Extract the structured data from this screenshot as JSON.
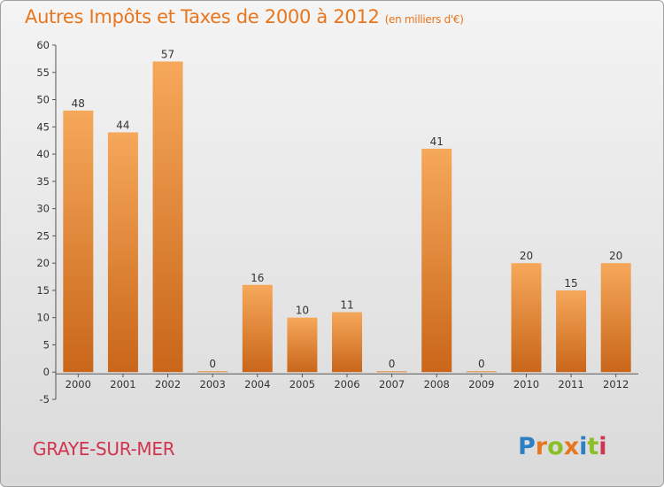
{
  "header": {
    "title": "Autres Impôts et Taxes de 2000 à 2012",
    "subtitle": "(en milliers d'€)"
  },
  "footer": {
    "place": "GRAYE-SUR-MER",
    "brand": "Proxiti",
    "brand_letters": [
      {
        "ch": "P",
        "color": "#2d7fc4"
      },
      {
        "ch": "r",
        "color": "#e8761e"
      },
      {
        "ch": "o",
        "color": "#8cbf26"
      },
      {
        "ch": "x",
        "color": "#e8761e"
      },
      {
        "ch": "i",
        "color": "#2d7fc4"
      },
      {
        "ch": "t",
        "color": "#8cbf26"
      },
      {
        "ch": "i",
        "color": "#d0344f"
      }
    ]
  },
  "colors": {
    "bar_top": "#f6a85a",
    "bar_bottom": "#c9661a",
    "title": "#e8761e",
    "place": "#d0344f"
  },
  "chart_data": {
    "type": "bar",
    "title": "Autres Impôts et Taxes de 2000 à 2012",
    "subtitle": "(en milliers d'€)",
    "categories": [
      "2000",
      "2001",
      "2002",
      "2003",
      "2004",
      "2005",
      "2006",
      "2007",
      "2008",
      "2009",
      "2010",
      "2011",
      "2012"
    ],
    "values": [
      48,
      44,
      57,
      0,
      16,
      10,
      11,
      0,
      41,
      0,
      20,
      15,
      20
    ],
    "ylim": [
      -5,
      60
    ],
    "yticks": [
      -5,
      0,
      5,
      10,
      15,
      20,
      25,
      30,
      35,
      40,
      45,
      50,
      55,
      60
    ],
    "grid": false,
    "legend": "none"
  }
}
